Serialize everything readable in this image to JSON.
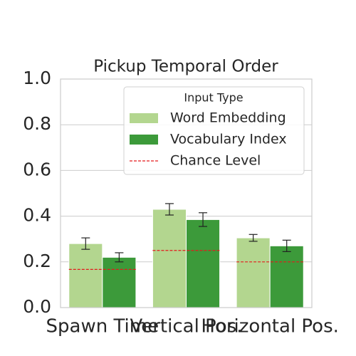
{
  "chart_data": {
    "type": "bar",
    "title": "Pickup Temporal Order",
    "categories": [
      "Spawn Time",
      "Vertical Pos.",
      "Horizontal Pos."
    ],
    "series": [
      {
        "name": "Word Embedding",
        "color": "#b3d68f",
        "values": [
          0.28,
          0.43,
          0.305
        ],
        "errors": [
          0.025,
          0.025,
          0.015
        ]
      },
      {
        "name": "Vocabulary Index",
        "color": "#3c9a3a",
        "values": [
          0.22,
          0.385,
          0.27
        ],
        "errors": [
          0.02,
          0.03,
          0.025
        ]
      }
    ],
    "chance_level": {
      "name": "Chance Level",
      "color": "#e41a1c",
      "values": [
        0.167,
        0.25,
        0.2
      ]
    },
    "legend_title": "Input Type",
    "legend": "upper right",
    "ylim": [
      0,
      1
    ],
    "yticks": [
      {
        "value": 0,
        "label": "0.0"
      },
      0.2,
      0.4,
      0.6,
      0.8,
      {
        "value": 1,
        "label": "1.0"
      }
    ],
    "grid": true
  }
}
